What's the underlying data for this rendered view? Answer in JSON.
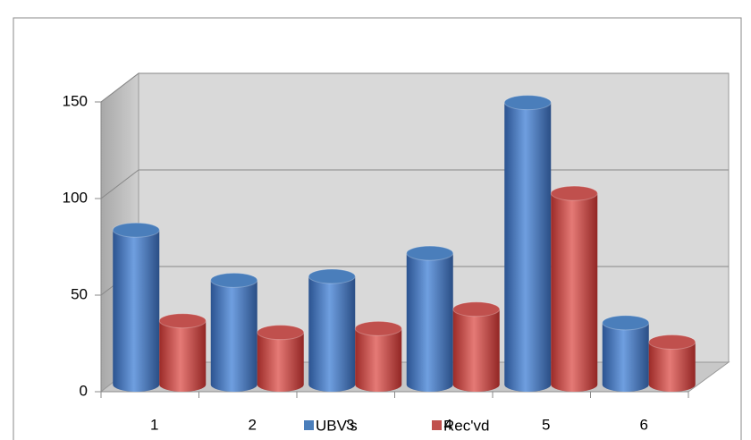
{
  "chart_data": {
    "type": "bar3d",
    "categories": [
      "1",
      "2",
      "3",
      "4",
      "5",
      "6"
    ],
    "series": [
      {
        "name": "UBV's",
        "color": "#4a7ebb",
        "values": [
          80,
          54,
          56,
          68,
          146,
          32
        ]
      },
      {
        "name": "Rec'vd",
        "color": "#c0504d",
        "values": [
          33,
          27,
          29,
          39,
          99,
          22
        ]
      }
    ],
    "ylim": [
      0,
      150
    ],
    "yticks": [
      0,
      50,
      100,
      150
    ],
    "grid": true,
    "legend": "bottom"
  }
}
